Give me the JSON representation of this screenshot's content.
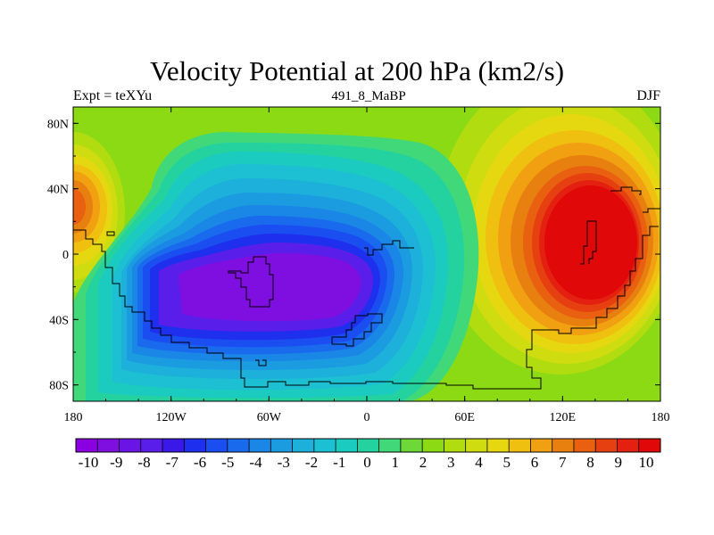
{
  "header": {
    "title": "Velocity Potential at 200 hPa (km2/s)",
    "left": "Expt = teXYu",
    "center": "491_8_MaBP",
    "right": "DJF"
  },
  "axes": {
    "x_ticks": [
      {
        "value": -180,
        "label": "180"
      },
      {
        "value": -120,
        "label": "120W"
      },
      {
        "value": -60,
        "label": "60W"
      },
      {
        "value": 0,
        "label": "0"
      },
      {
        "value": 60,
        "label": "60E"
      },
      {
        "value": 120,
        "label": "120E"
      },
      {
        "value": 180,
        "label": "180"
      }
    ],
    "y_ticks": [
      {
        "value": 80,
        "label": "80N"
      },
      {
        "value": 40,
        "label": "40N"
      },
      {
        "value": 0,
        "label": "0"
      },
      {
        "value": -40,
        "label": "40S"
      },
      {
        "value": -80,
        "label": "80S"
      }
    ],
    "x_range": [
      -180,
      180
    ],
    "y_range": [
      -90,
      90
    ]
  },
  "colorbar": {
    "labels": [
      "-10",
      "-9",
      "-8",
      "-7",
      "-6",
      "-5",
      "-4",
      "-3",
      "-2",
      "-1",
      "0",
      "1",
      "2",
      "3",
      "4",
      "5",
      "6",
      "7",
      "8",
      "9",
      "10"
    ],
    "colors": [
      "#8B00E0",
      "#7F0FE0",
      "#6A14E6",
      "#5A1EEB",
      "#3A18E8",
      "#1E30EE",
      "#1A4EF0",
      "#1A6AEE",
      "#1A86E6",
      "#1C9CE0",
      "#1CB0DA",
      "#1CC0D2",
      "#1CCBC0",
      "#24D2A0",
      "#40D878",
      "#6ED838",
      "#8CDA14",
      "#B0DC10",
      "#CEDC10",
      "#E6D810",
      "#F0C010",
      "#F0A010",
      "#E88010",
      "#E86010",
      "#E64010",
      "#E42010",
      "#E00808"
    ]
  },
  "chart_data": {
    "type": "heatmap",
    "title": "Velocity Potential at 200 hPa (km2/s)",
    "subtitle": "491_8_MaBP",
    "left_label": "Expt = teXYu",
    "right_label": "DJF",
    "xlim": [
      -180,
      180
    ],
    "ylim": [
      -90,
      90
    ],
    "contour_levels": [
      -10,
      -9,
      -8,
      -7,
      -6,
      -5,
      -4,
      -3,
      -2,
      -1,
      0,
      1,
      2,
      3,
      4,
      5,
      6,
      7,
      8,
      9,
      10
    ],
    "centers": [
      {
        "lon": -48,
        "lat": -15,
        "value": -10.5,
        "label": "minimum"
      },
      {
        "lon": 140,
        "lat": 10,
        "value": 10.5,
        "label": "maximum"
      }
    ],
    "grid": false
  }
}
